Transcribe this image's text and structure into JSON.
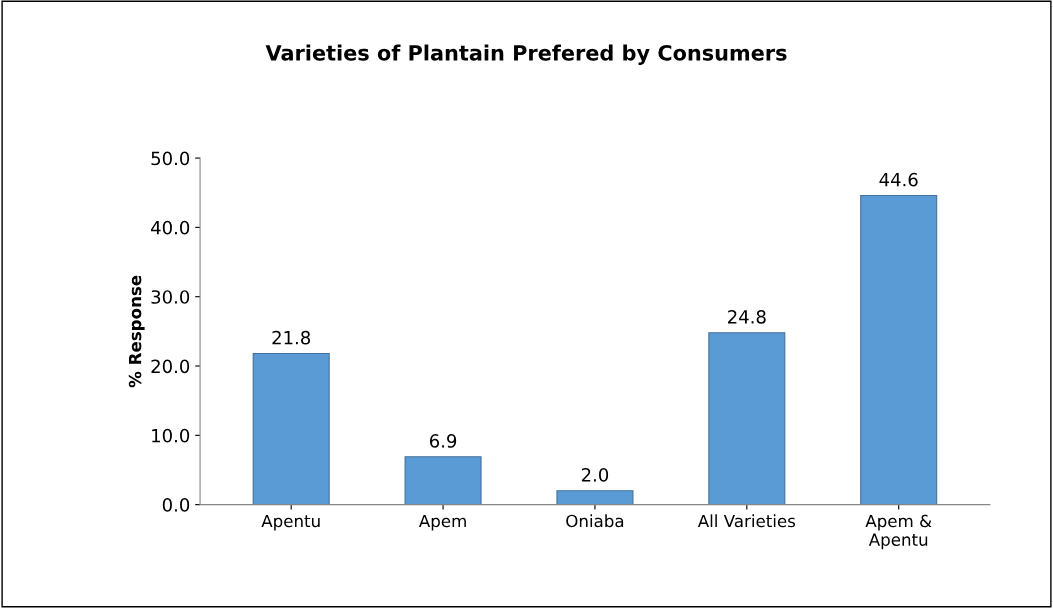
{
  "chart_data": {
    "type": "bar",
    "title": "Varieties of Plantain Prefered by Consumers",
    "ylabel": "% Response",
    "categories": [
      "Apentu",
      "Apem",
      "Oniaba",
      "All Varieties",
      "Apem &\nApentu"
    ],
    "values": [
      21.8,
      6.9,
      2.0,
      24.8,
      44.6
    ],
    "value_labels": [
      "21.8",
      "6.9",
      "2.0",
      "24.8",
      "44.6"
    ],
    "color": "#5b9bd5",
    "ylim": [
      0,
      50
    ],
    "yticks": [
      {
        "value": 0,
        "label": "0.0"
      },
      {
        "value": 10,
        "label": "10.0"
      },
      {
        "value": 20,
        "label": "20.0"
      },
      {
        "value": 30,
        "label": "30.0"
      },
      {
        "value": 40,
        "label": "40.0"
      },
      {
        "value": 50,
        "label": "50.0"
      }
    ],
    "grid": false
  }
}
